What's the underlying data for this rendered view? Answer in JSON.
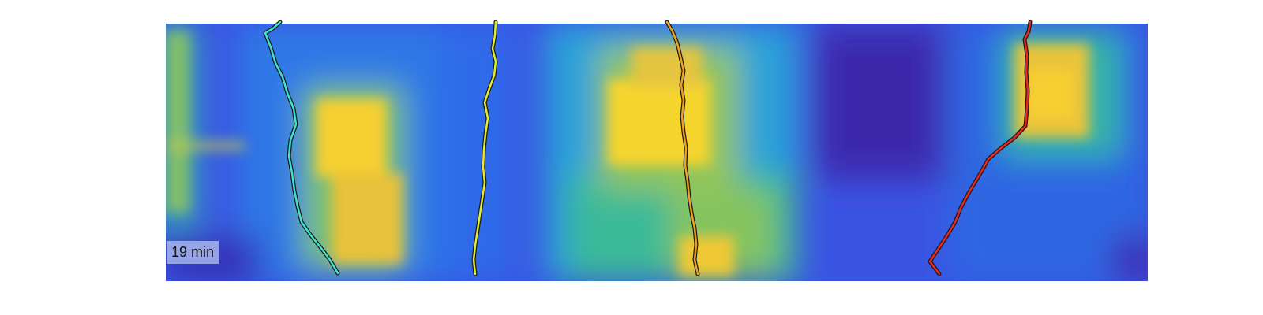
{
  "time_label": "19 min",
  "colors": {
    "background": "#ffffff",
    "colormap_low": "#3d2bb5",
    "colormap_mid": "#22b2bf",
    "colormap_high": "#f4dc1c",
    "outline": "#1a1a1a"
  },
  "tracks": [
    {
      "name": "cyan-track",
      "color": "#3fe3d0"
    },
    {
      "name": "yellow-track",
      "color": "#e2ef28"
    },
    {
      "name": "orange-track",
      "color": "#f0a21e"
    },
    {
      "name": "red-track",
      "color": "#e8281e"
    }
  ]
}
